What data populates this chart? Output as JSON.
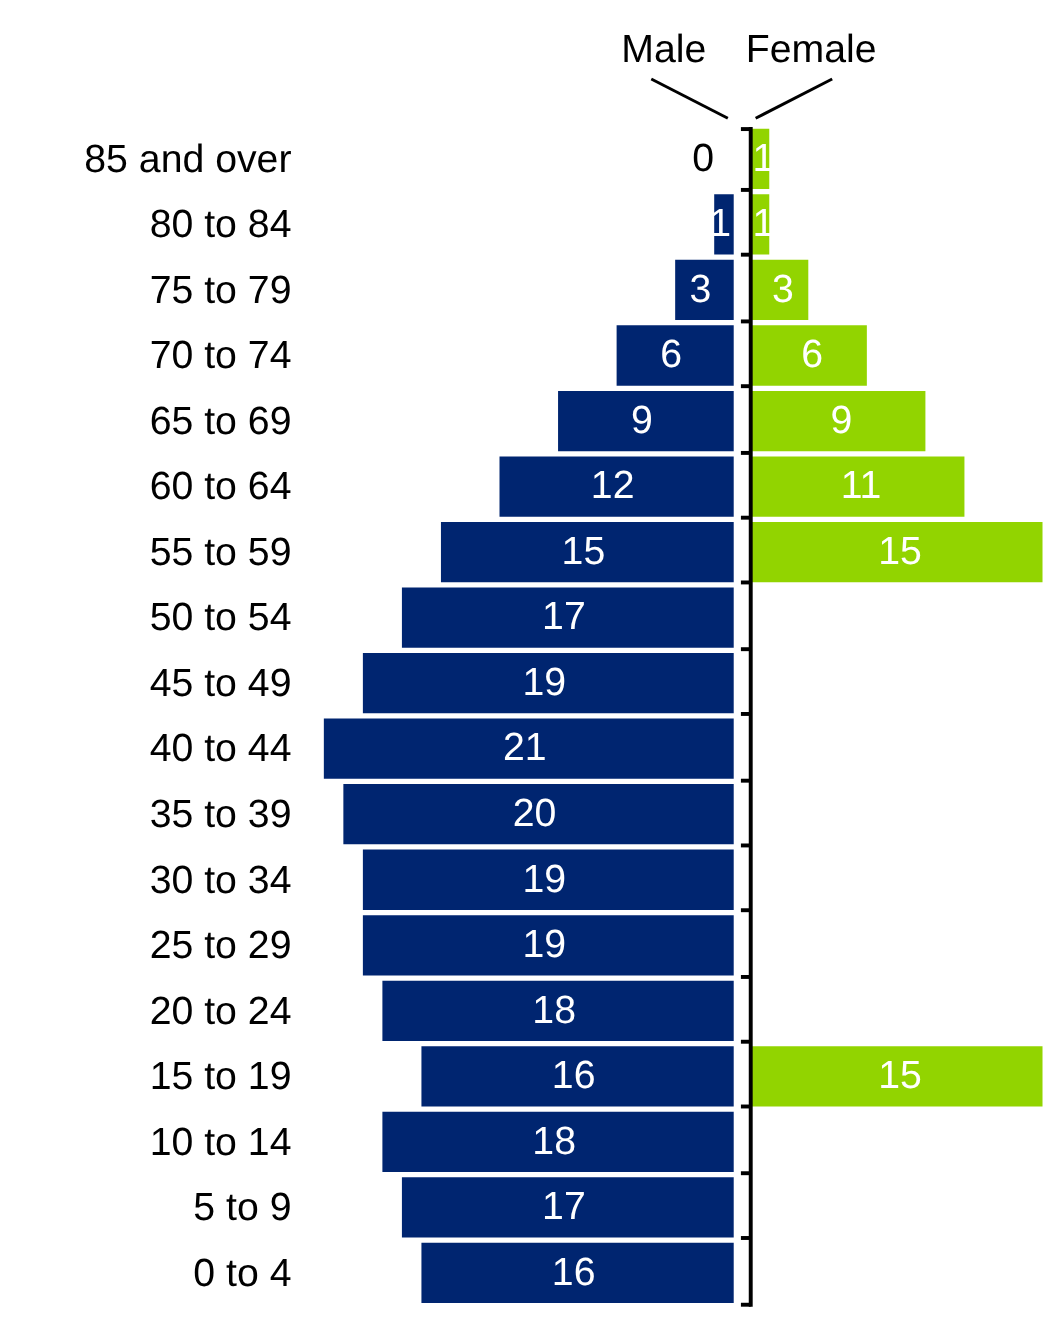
{
  "chart_data": [
    {
      "type": "bar",
      "orientation": "horizontal",
      "title": "Male",
      "color": "#002570",
      "categories": [
        "85 and over",
        "80 to 84",
        "75 to 79",
        "70 to 74",
        "65 to 69",
        "60 to 64",
        "55 to 59",
        "50 to 54",
        "45 to 49",
        "40 to 44",
        "35 to 39",
        "30 to 34",
        "25 to 29",
        "20 to 24",
        "15 to 19",
        "10 to 14",
        "5 to 9",
        "0 to 4"
      ],
      "values": [
        0,
        1,
        3,
        6,
        9,
        12,
        15,
        17,
        19,
        21,
        20,
        19,
        19,
        18,
        16,
        18,
        17,
        16
      ],
      "xlim": [
        21,
        0
      ],
      "tick_labels": "y",
      "data_labels": true
    },
    {
      "type": "bar",
      "orientation": "horizontal",
      "title": "Female",
      "color": "#92d400",
      "categories": [
        "85 and over",
        "80 to 84",
        "75 to 79",
        "70 to 74",
        "65 to 69",
        "60 to 64",
        "55 to 59",
        "50 to 54",
        "45 to 49",
        "40 to 44",
        "35 to 39",
        "30 to 34",
        "25 to 29",
        "20 to 24",
        "15 to 19",
        "10 to 14",
        "5 to 9",
        "0 to 4"
      ],
      "values": [
        1,
        1,
        3,
        6,
        9,
        11,
        15,
        null,
        null,
        null,
        null,
        null,
        null,
        null,
        15,
        null,
        null,
        null
      ],
      "xlim": [
        0,
        15
      ],
      "tick_labels": false,
      "data_labels": true
    }
  ]
}
